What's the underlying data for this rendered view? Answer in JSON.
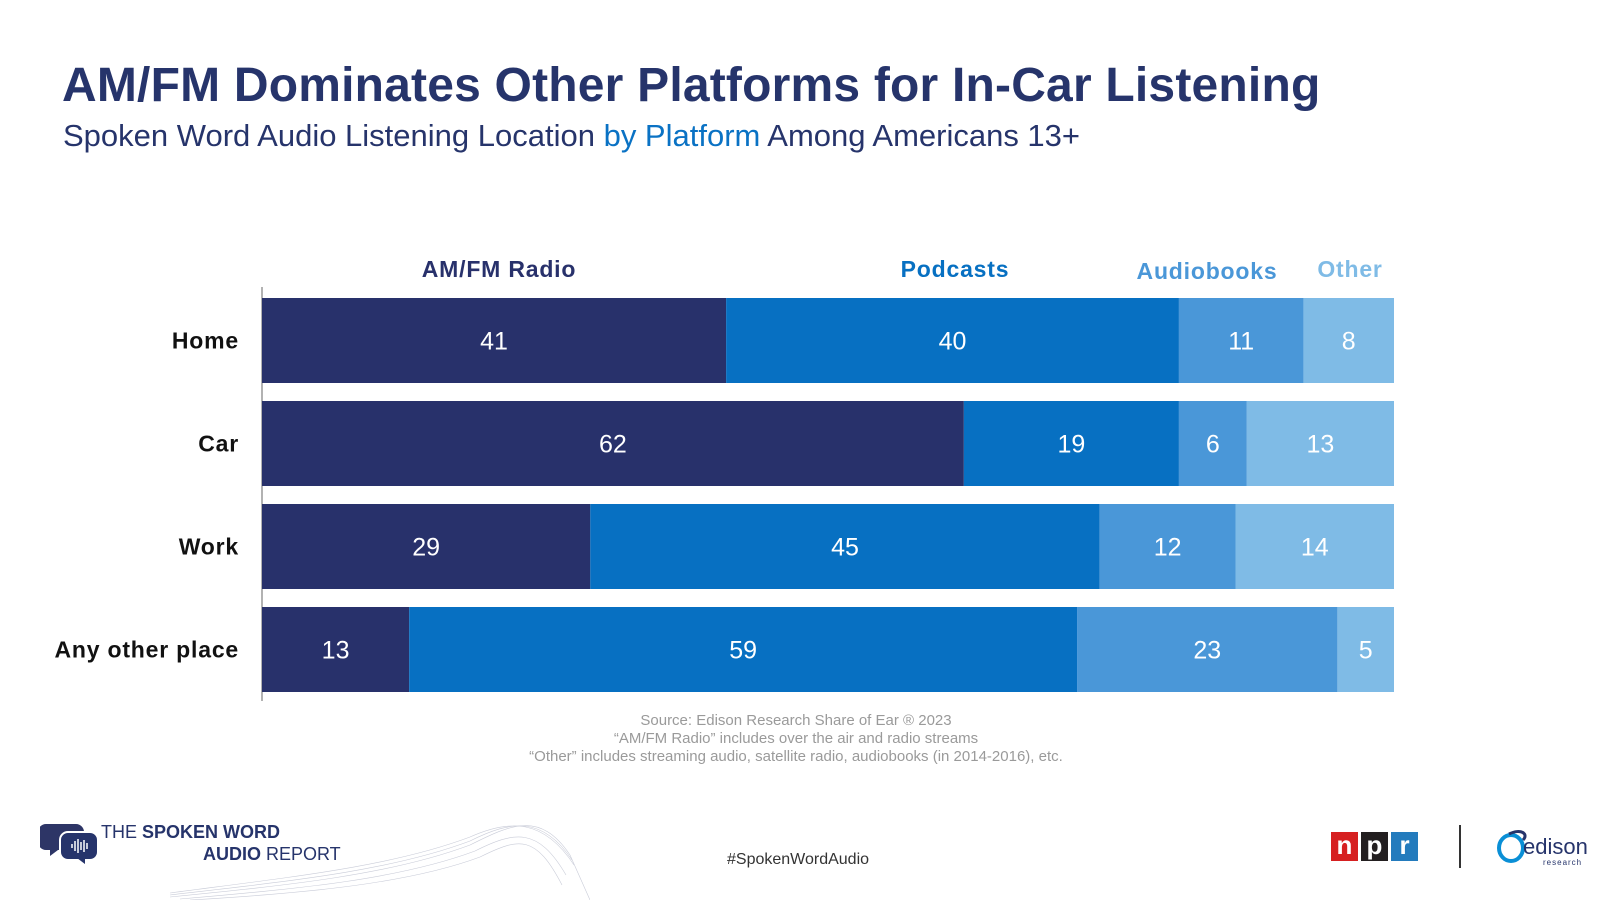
{
  "header": {
    "title": "AM/FM Dominates Other Platforms for In-Car Listening",
    "subtitle_pre": "Spoken Word Audio Listening Location ",
    "subtitle_hl": "by Platform",
    "subtitle_post": " Among Americans 13+"
  },
  "colors": {
    "title": "#26346b",
    "highlight": "#0a72c4",
    "series": [
      "#28316b",
      "#0770c2",
      "#4a97d8",
      "#7fbbe6"
    ],
    "legend_text": [
      "#28316b",
      "#0770c2",
      "#4a97d8",
      "#7fbbe6"
    ]
  },
  "chart_data": {
    "type": "bar",
    "orientation": "horizontal",
    "stacked": true,
    "categories": [
      "Home",
      "Car",
      "Work",
      "Any other place"
    ],
    "series": [
      {
        "name": "AM/FM Radio",
        "values": [
          41,
          62,
          29,
          13
        ]
      },
      {
        "name": "Podcasts",
        "values": [
          40,
          19,
          45,
          59
        ]
      },
      {
        "name": "Audiobooks",
        "values": [
          11,
          6,
          12,
          23
        ]
      },
      {
        "name": "Other",
        "values": [
          8,
          13,
          14,
          5
        ]
      }
    ],
    "xlim": [
      0,
      100
    ],
    "legend": "top"
  },
  "footnotes": {
    "line1": "Source: Edison Research Share of Ear ® 2023",
    "line2": "“AM/FM Radio” includes over the air and radio streams",
    "line3": "“Other” includes streaming audio, satellite radio, audiobooks (in 2014-2016), etc."
  },
  "footer": {
    "hashtag": "#SpokenWordAudio",
    "logo_line1_a": "THE ",
    "logo_line1_b": "SPOKEN WORD",
    "logo_line2_a": "AUDIO",
    "logo_line2_b": " REPORT",
    "npr_letters": [
      "n",
      "p",
      "r"
    ],
    "npr_colors": [
      "#d62021",
      "#231f20",
      "#237bbd"
    ],
    "edison_word": "edison",
    "edison_small": "research"
  }
}
